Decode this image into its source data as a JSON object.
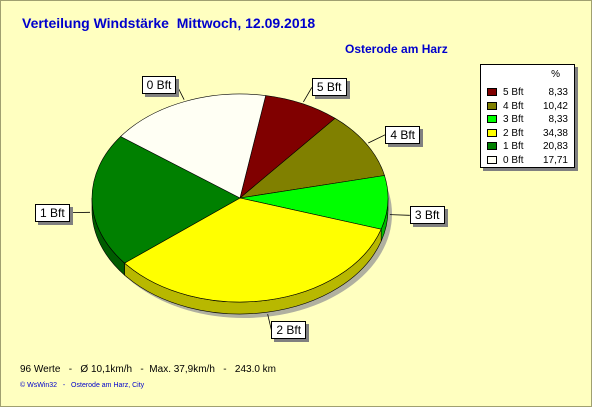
{
  "header": {
    "title": "Verteilung Windstärke  Mittwoch, 12.09.2018",
    "location": "Osterode am Harz"
  },
  "legend": {
    "header": "%"
  },
  "stats": {
    "text": "96 Werte   -   Ø 10,1km/h   -  Max. 37,9km/h   -   243.0 km"
  },
  "footer": {
    "text": "© WsWin32   -   Osterode am Harz, City"
  },
  "chart_data": {
    "type": "pie",
    "title": "Verteilung Windstärke  Mittwoch, 12.09.2018",
    "subtitle": "Osterode am Harz",
    "legend_position": "top-right",
    "slices": [
      {
        "label": "5 Bft",
        "value": 8.33,
        "value_text": "8,33",
        "color": "#800000"
      },
      {
        "label": "4 Bft",
        "value": 10.42,
        "value_text": "10,42",
        "color": "#808000"
      },
      {
        "label": "3 Bft",
        "value": 8.33,
        "value_text": "8,33",
        "color": "#00FF00"
      },
      {
        "label": "2 Bft",
        "value": 34.38,
        "value_text": "34,38",
        "color": "#FFFF00"
      },
      {
        "label": "1 Bft",
        "value": 20.83,
        "value_text": "20,83",
        "color": "#008000"
      },
      {
        "label": "0 Bft",
        "value": 17.71,
        "value_text": "17,71",
        "color": "#FFFFF4"
      }
    ]
  }
}
